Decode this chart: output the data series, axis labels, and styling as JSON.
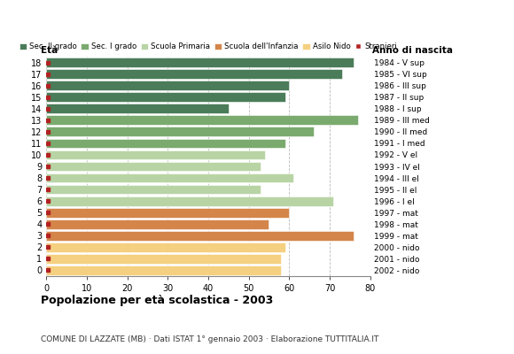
{
  "ages": [
    18,
    17,
    16,
    15,
    14,
    13,
    12,
    11,
    10,
    9,
    8,
    7,
    6,
    5,
    4,
    3,
    2,
    1,
    0
  ],
  "values": [
    76,
    73,
    60,
    59,
    45,
    77,
    66,
    59,
    54,
    53,
    61,
    53,
    71,
    60,
    55,
    76,
    59,
    58,
    58
  ],
  "right_labels": [
    "1984 - V sup",
    "1985 - VI sup",
    "1986 - III sup",
    "1987 - II sup",
    "1988 - I sup",
    "1989 - III med",
    "1990 - II med",
    "1991 - I med",
    "1992 - V el",
    "1993 - IV el",
    "1994 - III el",
    "1995 - II el",
    "1996 - I el",
    "1997 - mat",
    "1998 - mat",
    "1999 - mat",
    "2000 - nido",
    "2001 - nido",
    "2002 - nido"
  ],
  "bar_colors": [
    "#4a7c59",
    "#4a7c59",
    "#4a7c59",
    "#4a7c59",
    "#4a7c59",
    "#7aaa6e",
    "#7aaa6e",
    "#7aaa6e",
    "#b8d4a4",
    "#b8d4a4",
    "#b8d4a4",
    "#b8d4a4",
    "#b8d4a4",
    "#d4854a",
    "#d4854a",
    "#d4854a",
    "#f5d080",
    "#f5d080",
    "#f5d080"
  ],
  "stranieri_color": "#b22222",
  "legend_labels": [
    "Sec. II grado",
    "Sec. I grado",
    "Scuola Primaria",
    "Scuola dell'Infanzia",
    "Asilo Nido",
    "Stranieri"
  ],
  "legend_colors": [
    "#4a7c59",
    "#7aaa6e",
    "#b8d4a4",
    "#d4854a",
    "#f5d080",
    "#b22222"
  ],
  "title": "Popolazione per età scolastica - 2003",
  "subtitle": "COMUNE DI LAZZATE (MB) · Dati ISTAT 1° gennaio 2003 · Elaborazione TUTTITALIA.IT",
  "xlabel_eta": "Età",
  "xlabel_anno": "Anno di nascita",
  "xlim": [
    0,
    80
  ],
  "xticks": [
    0,
    10,
    20,
    30,
    40,
    50,
    60,
    70,
    80
  ],
  "background_color": "#ffffff",
  "grid_color": "#bbbbbb"
}
